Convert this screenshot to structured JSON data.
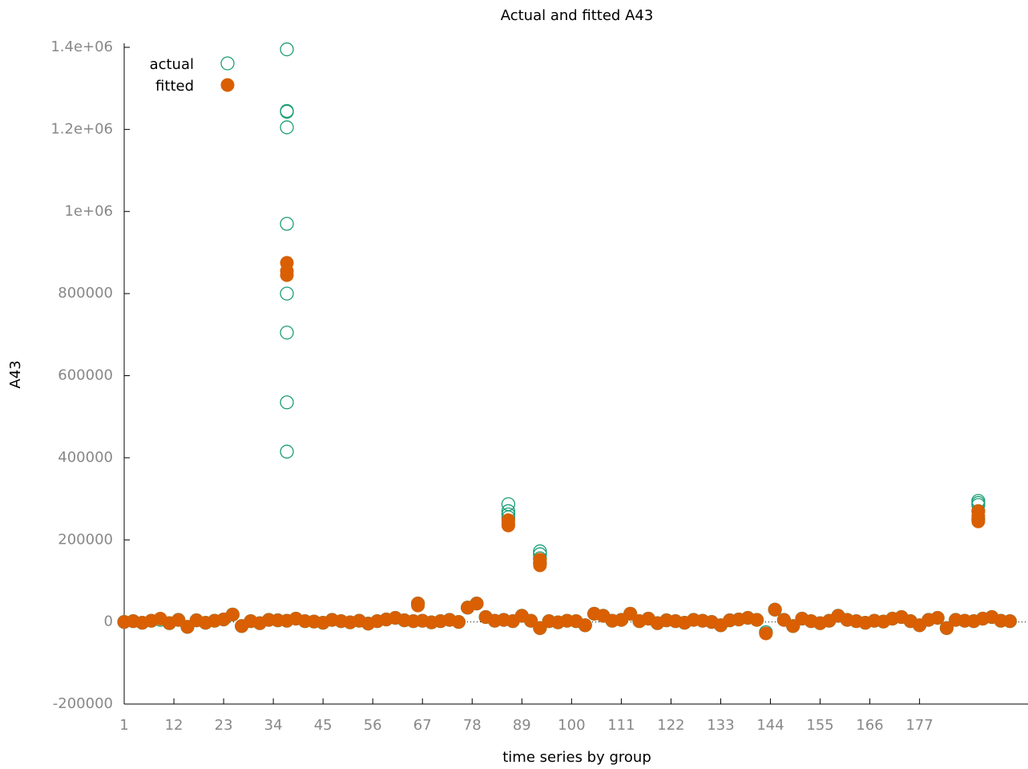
{
  "chart_data": {
    "type": "scatter",
    "title": "Actual and fitted A43",
    "x_label": "time series by group",
    "y_label": "A43",
    "xlim": [
      1,
      201
    ],
    "ylim": [
      -200000,
      1400000
    ],
    "xticks": [
      1,
      12,
      23,
      34,
      45,
      56,
      67,
      78,
      89,
      100,
      111,
      122,
      133,
      144,
      155,
      166,
      177
    ],
    "yticks": [
      -200000,
      0,
      200000,
      400000,
      600000,
      800000,
      {
        "value": 1000000,
        "label": "1e+06"
      },
      {
        "value": 1200000,
        "label": "1.2e+06"
      },
      {
        "value": 1400000,
        "label": "1.4e+06"
      }
    ],
    "legend": "top-left",
    "zero_line": true,
    "series": [
      {
        "name": "actual",
        "color": "#1b9e77",
        "marker": "open",
        "x": [
          1,
          3,
          5,
          7,
          9,
          11,
          13,
          15,
          17,
          19,
          21,
          23,
          25,
          27,
          29,
          31,
          33,
          35,
          37,
          39,
          41,
          43,
          45,
          47,
          49,
          51,
          53,
          55,
          57,
          59,
          61,
          63,
          65,
          67,
          69,
          71,
          73,
          75,
          77,
          79,
          81,
          83,
          85,
          87,
          89,
          91,
          93,
          95,
          97,
          99,
          101,
          103,
          105,
          107,
          109,
          111,
          113,
          115,
          117,
          119,
          121,
          123,
          125,
          127,
          129,
          131,
          133,
          135,
          137,
          139,
          141,
          143,
          145,
          147,
          149,
          151,
          153,
          155,
          157,
          159,
          161,
          163,
          165,
          167,
          169,
          171,
          173,
          175,
          177,
          179,
          181,
          183,
          185,
          187,
          189,
          191,
          193,
          195,
          197,
          37,
          37,
          37,
          37,
          37,
          37,
          37,
          37,
          37,
          86,
          86,
          86,
          86,
          93,
          93,
          93,
          93,
          190,
          190,
          190,
          190,
          190,
          66
        ],
        "values": [
          0,
          2000,
          -2000,
          3000,
          5000,
          -3000,
          5000,
          -12000,
          4000,
          -2000,
          3000,
          6000,
          18000,
          -10000,
          2000,
          -3000,
          5000,
          4000,
          3000,
          8000,
          2000,
          1000,
          -2000,
          5000,
          2000,
          -1000,
          3000,
          -4000,
          2000,
          6000,
          10000,
          4000,
          2000,
          3000,
          -1000,
          2000,
          5000,
          0,
          35000,
          45000,
          12000,
          3000,
          5000,
          2000,
          15000,
          3000,
          -15000,
          2000,
          -1000,
          3000,
          2000,
          -8000,
          20000,
          15000,
          3000,
          5000,
          20000,
          2000,
          8000,
          -3000,
          4000,
          2000,
          -2000,
          5000,
          3000,
          0,
          -8000,
          4000,
          6000,
          10000,
          5000,
          -25000,
          30000,
          5000,
          -10000,
          8000,
          2000,
          -3000,
          3000,
          15000,
          5000,
          2000,
          -2000,
          3000,
          1000,
          8000,
          12000,
          2000,
          -8000,
          5000,
          10000,
          -15000,
          5000,
          3000,
          2000,
          8000,
          12000,
          3000,
          2000,
          1395000,
          1245000,
          1243000,
          1205000,
          970000,
          800000,
          705000,
          535000,
          415000,
          287000,
          270000,
          262000,
          255000,
          172000,
          165000,
          155000,
          143000,
          295000,
          290000,
          285000,
          270000,
          250000,
          45000
        ]
      },
      {
        "name": "fitted",
        "color": "#d95f02",
        "marker": "filled",
        "x": [
          1,
          3,
          5,
          7,
          9,
          11,
          13,
          15,
          17,
          19,
          21,
          23,
          25,
          27,
          29,
          31,
          33,
          35,
          37,
          39,
          41,
          43,
          45,
          47,
          49,
          51,
          53,
          55,
          57,
          59,
          61,
          63,
          65,
          67,
          69,
          71,
          73,
          75,
          77,
          79,
          81,
          83,
          85,
          87,
          89,
          91,
          93,
          95,
          97,
          99,
          101,
          103,
          105,
          107,
          109,
          111,
          113,
          115,
          117,
          119,
          121,
          123,
          125,
          127,
          129,
          131,
          133,
          135,
          137,
          139,
          141,
          143,
          145,
          147,
          149,
          151,
          153,
          155,
          157,
          159,
          161,
          163,
          165,
          167,
          169,
          171,
          173,
          175,
          177,
          179,
          181,
          183,
          185,
          187,
          189,
          191,
          193,
          195,
          197,
          37,
          37,
          37,
          86,
          86,
          86,
          93,
          93,
          93,
          190,
          190,
          190,
          66,
          66
        ],
        "values": [
          0,
          2000,
          -2000,
          3000,
          8000,
          -3000,
          5000,
          -12000,
          4000,
          -2000,
          3000,
          6000,
          18000,
          -10000,
          2000,
          -3000,
          5000,
          4000,
          3000,
          8000,
          2000,
          1000,
          -2000,
          5000,
          2000,
          -1000,
          3000,
          -4000,
          2000,
          6000,
          10000,
          4000,
          2000,
          3000,
          -1000,
          2000,
          5000,
          0,
          35000,
          45000,
          12000,
          3000,
          5000,
          2000,
          15000,
          3000,
          -15000,
          2000,
          -1000,
          3000,
          2000,
          -8000,
          20000,
          15000,
          3000,
          5000,
          20000,
          2000,
          8000,
          -3000,
          4000,
          2000,
          -2000,
          5000,
          3000,
          0,
          -8000,
          4000,
          6000,
          10000,
          5000,
          -28000,
          30000,
          5000,
          -10000,
          8000,
          2000,
          -3000,
          3000,
          15000,
          5000,
          2000,
          -2000,
          3000,
          1000,
          8000,
          12000,
          2000,
          -8000,
          5000,
          10000,
          -15000,
          5000,
          3000,
          2000,
          8000,
          12000,
          3000,
          2000,
          875000,
          855000,
          845000,
          248000,
          240000,
          235000,
          152000,
          145000,
          138000,
          270000,
          258000,
          245000,
          45000,
          40000
        ]
      }
    ]
  }
}
